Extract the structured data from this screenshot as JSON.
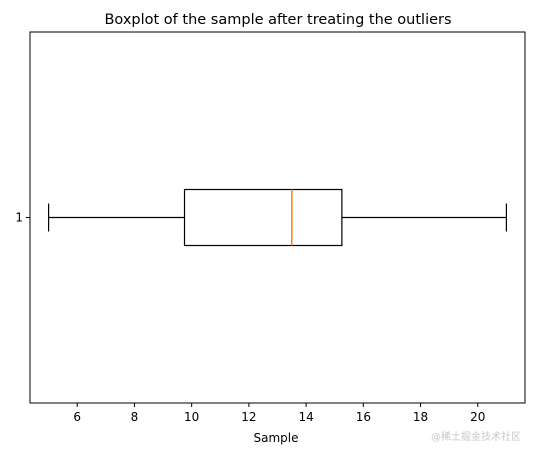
{
  "chart_data": {
    "type": "box",
    "orientation": "horizontal",
    "title": "Boxplot of the sample after treating the outliers",
    "xlabel": "Sample",
    "ylabel": "",
    "xlim": [
      4.35,
      21.65
    ],
    "x_ticks": [
      6,
      8,
      10,
      12,
      14,
      16,
      18,
      20
    ],
    "y_ticks": [
      "1"
    ],
    "grid": false,
    "legend": "none",
    "boxes": [
      {
        "position": "1",
        "whisker_low": 5.0,
        "q1": 9.75,
        "median": 13.5,
        "q3": 15.25,
        "whisker_high": 21.0
      }
    ],
    "colors": {
      "box": "#000000",
      "median": "#ff7f0e",
      "whisker": "#000000"
    }
  },
  "watermark": "@稀土掘金技术社区"
}
